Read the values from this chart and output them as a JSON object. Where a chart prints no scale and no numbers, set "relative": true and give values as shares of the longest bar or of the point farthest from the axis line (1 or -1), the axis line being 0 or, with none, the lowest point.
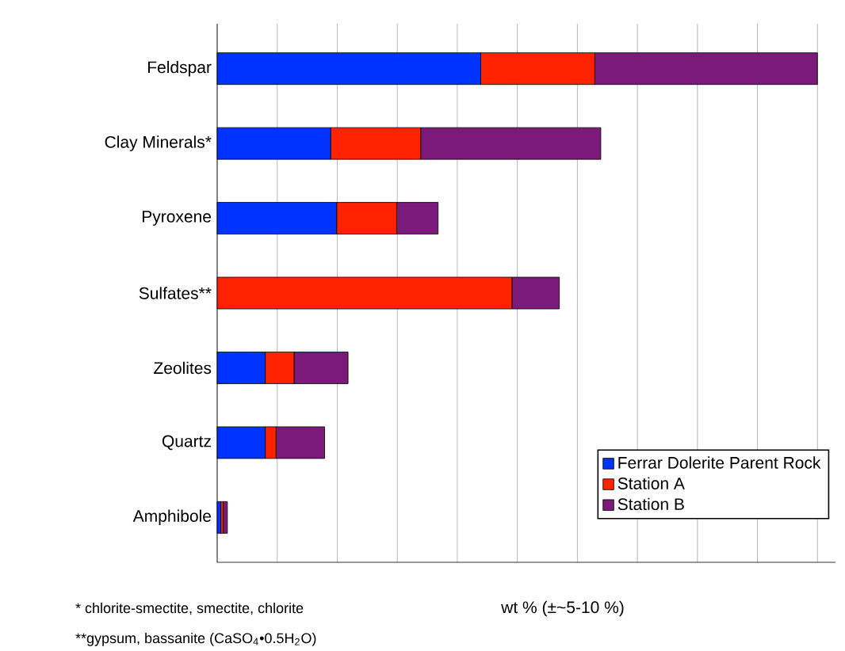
{
  "chart_data": {
    "type": "bar",
    "orientation": "horizontal",
    "stacked": true,
    "relative": true,
    "categories": [
      "Feldspar",
      "Clay Minerals*",
      "Pyroxene",
      "Sulfates**",
      "Zeolites",
      "Quartz",
      "Amphibole"
    ],
    "series": [
      {
        "name": "Ferrar Dolerite Parent Rock",
        "color": "#0033ff",
        "values": [
          0.439,
          0.189,
          0.199,
          0,
          0.08,
          0.08,
          0.006
        ]
      },
      {
        "name": "Station A",
        "color": "#ff2200",
        "values": [
          0.19,
          0.15,
          0.1,
          0.491,
          0.048,
          0.018,
          0.004
        ]
      },
      {
        "name": "Station B",
        "color": "#7b1a7b",
        "values": [
          0.371,
          0.3,
          0.069,
          0.079,
          0.09,
          0.081,
          0.007
        ]
      }
    ],
    "xlabel": "wt % (±~5-10 %)",
    "annotations": [
      "* chlorite-smectite, smectite, chlorite",
      "**gypsum, bassanite (CaSO$_{4}$•0.5H$_{2}$O)"
    ],
    "legend": "bottom right",
    "grid": "x"
  }
}
